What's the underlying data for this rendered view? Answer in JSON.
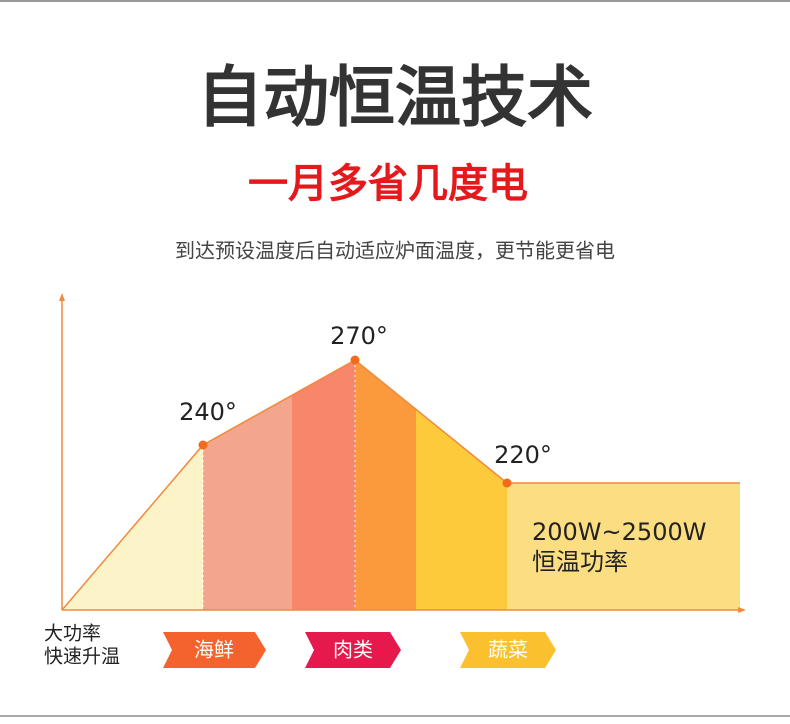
{
  "header": {
    "title": "自动恒温技术",
    "subtitle": "一月多省几度电",
    "description": "到达预设温度后自动适应炉面温度，更节能更省电"
  },
  "diagram": {
    "points": [
      {
        "label": "240°"
      },
      {
        "label": "270°"
      },
      {
        "label": "220°"
      }
    ],
    "power": {
      "range": "200W~2500W",
      "label": "恒温功率"
    },
    "start": {
      "line1": "大功率",
      "line2": "快速升温"
    },
    "tags": [
      {
        "label": "海鲜"
      },
      {
        "label": "肉类"
      },
      {
        "label": "蔬菜"
      }
    ]
  }
}
